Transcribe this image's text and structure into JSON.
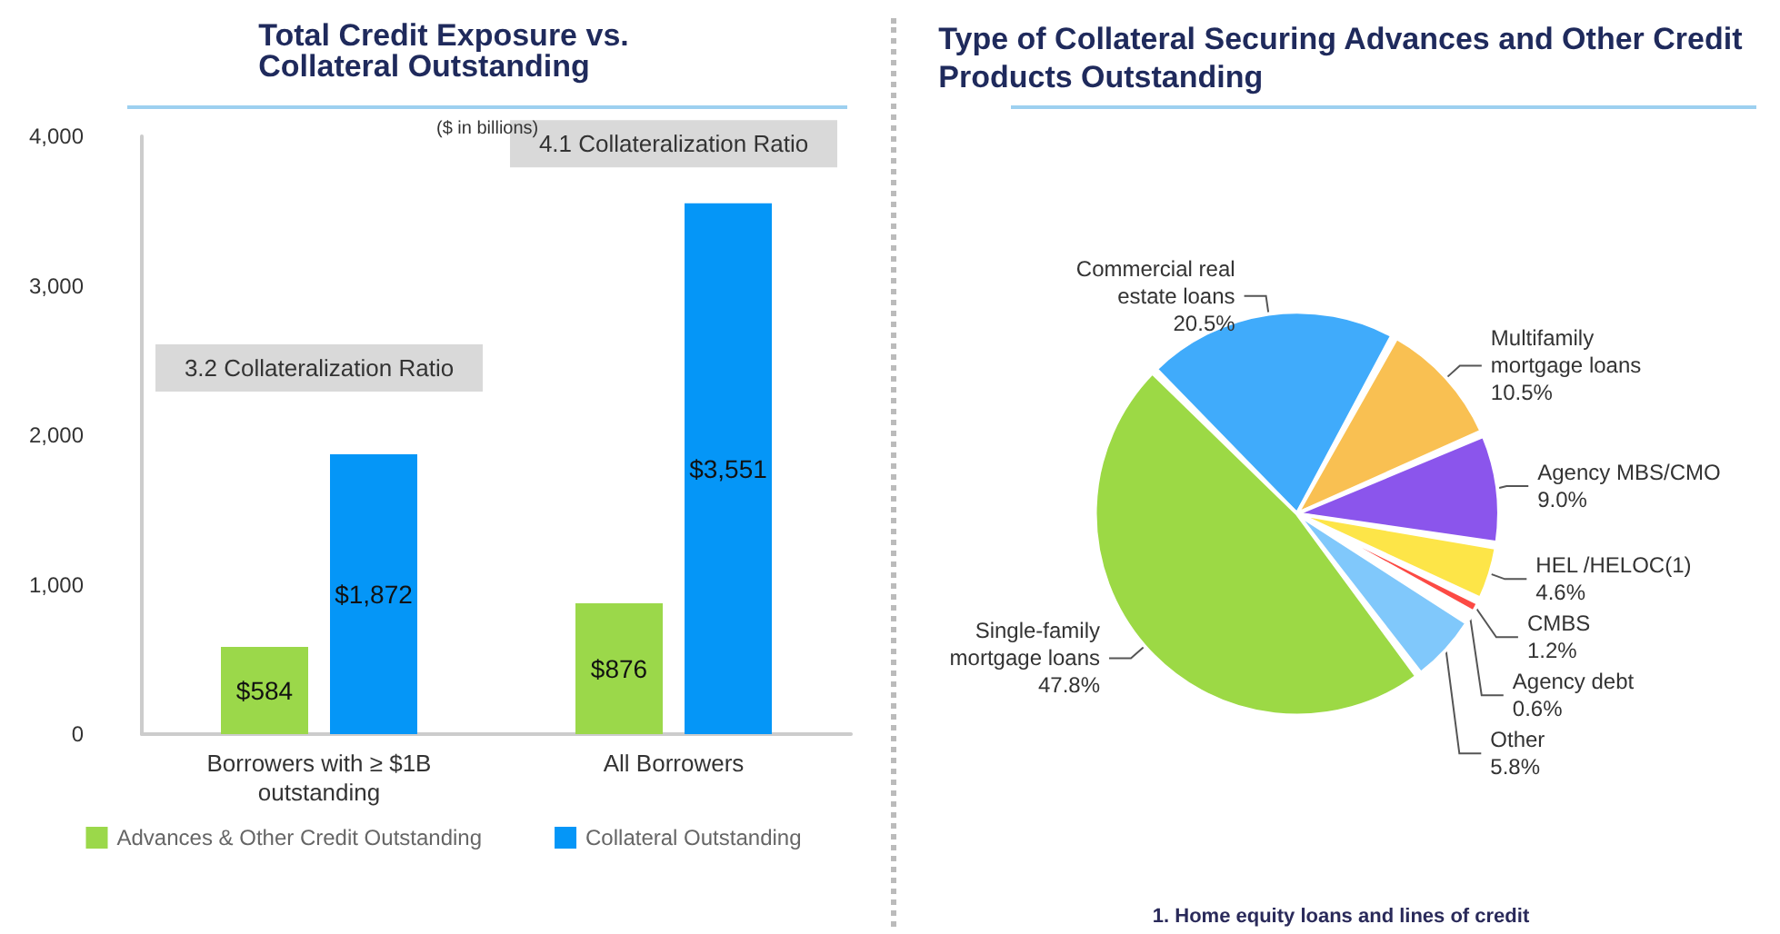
{
  "chart_data": [
    {
      "type": "bar",
      "title": "Total Credit Exposure vs. Collateral Outstanding",
      "subtitle": "($ in billions)",
      "categories": [
        "Borrowers with ≥ $1B outstanding",
        "All Borrowers"
      ],
      "series": [
        {
          "name": "Advances & Other Credit Outstanding",
          "color": "#9bd84a",
          "values": [
            584,
            876
          ],
          "value_labels": [
            "$584",
            "$876"
          ]
        },
        {
          "name": "Collateral Outstanding",
          "color": "#0596f7",
          "values": [
            1872,
            3551
          ],
          "value_labels": [
            "$1,872",
            "$3,551"
          ]
        }
      ],
      "ylim": [
        0,
        4000
      ],
      "yticks": [
        {
          "value": 0,
          "label": "0"
        },
        {
          "value": 1000,
          "label": "1,000"
        },
        {
          "value": 2000,
          "label": "2,000"
        },
        {
          "value": 3000,
          "label": "3,000"
        },
        {
          "value": 4000,
          "label": "4,000"
        }
      ],
      "annotations": [
        "3.2 Collateralization Ratio",
        "4.1 Collateralization Ratio"
      ],
      "grid": false,
      "legend": "bottom"
    },
    {
      "type": "pie",
      "title": "Type of Collateral Securing Advances and Other Credit Products Outstanding",
      "categories": [
        "Commercial real estate loans",
        "Multifamily mortgage loans",
        "Agency MBS/CMO",
        "HEL /HELOC(1)",
        "CMBS",
        "Agency debt",
        "Other",
        "Single-family mortgage loans"
      ],
      "values": [
        20.5,
        10.5,
        9.0,
        4.6,
        1.2,
        0.6,
        5.8,
        47.8
      ],
      "value_labels": [
        "20.5%",
        "10.5%",
        "9.0%",
        "4.6%",
        "1.2%",
        "0.6%",
        "5.8%",
        "47.8%"
      ],
      "colors": [
        "#40abfb",
        "#f9c052",
        "#8b55ec",
        "#fde548",
        "#fc4a44",
        "#a8d88a",
        "#80c8fb",
        "#9cd945"
      ],
      "annotations": [
        "1. Home equity loans and lines of credit"
      ],
      "legend": false
    }
  ]
}
